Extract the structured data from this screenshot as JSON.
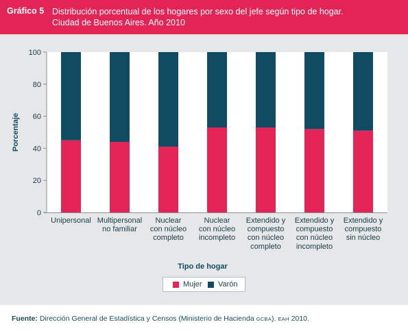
{
  "header": {
    "label": "Gráfico 5",
    "title_line1": "Distribución porcentual de los hogares por sexo del jefe según tipo de hogar.",
    "title_line2": "Ciudad de Buenos Aires. Año 2010"
  },
  "chart_data": {
    "type": "bar",
    "stacked": true,
    "xlabel": "Tipo de hogar",
    "ylabel": "Porcentaje",
    "ylim": [
      0,
      100
    ],
    "yticks": [
      0,
      20,
      40,
      60,
      80,
      100
    ],
    "categories": [
      [
        "Unipersonal"
      ],
      [
        "Multipersonal",
        "no familiar"
      ],
      [
        "Nuclear",
        "con núcleo",
        "completo"
      ],
      [
        "Nuclear",
        "con núcleo",
        "incompleto"
      ],
      [
        "Extendido y",
        "compuesto",
        "con núcleo",
        "completo"
      ],
      [
        "Extendido y",
        "compuesto",
        "con núcleo",
        "incompleto"
      ],
      [
        "Extendido y",
        "compuesto",
        "sin núcleo"
      ]
    ],
    "series": [
      {
        "name": "Mujer",
        "color": "#e32457",
        "values": [
          45,
          44,
          41,
          53,
          53,
          52,
          51
        ]
      },
      {
        "name": "Varón",
        "color": "#0f4c62",
        "values": [
          55,
          56,
          59,
          47,
          47,
          48,
          49
        ]
      }
    ],
    "grid": false,
    "legend_position": "bottom-center"
  },
  "footer": {
    "source_label": "Fuente:",
    "source_text": "Dirección General de Estadística y Censos (Ministerio de Hacienda ",
    "gcba": "GCBA",
    "sep": "). ",
    "eah": "EAH",
    "year": " 2010."
  }
}
